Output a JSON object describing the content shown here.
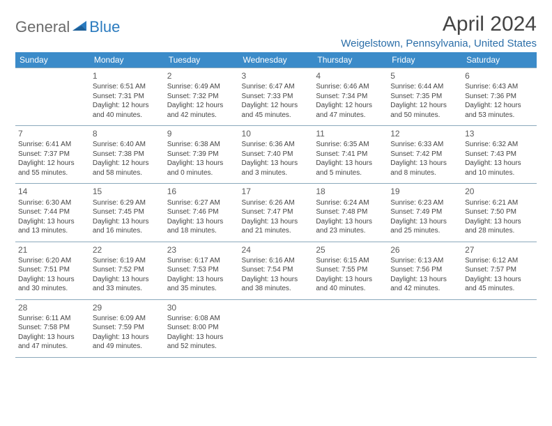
{
  "logo": {
    "general": "General",
    "blue": "Blue"
  },
  "title": "April 2024",
  "location": "Weigelstown, Pennsylvania, United States",
  "colors": {
    "header_bg": "#3b8bc9",
    "header_text": "#ffffff",
    "border": "#8aa8bb",
    "location_text": "#2b6ea8",
    "logo_general": "#6b6b6b",
    "logo_blue": "#2b7bbf"
  },
  "weekdays": [
    "Sunday",
    "Monday",
    "Tuesday",
    "Wednesday",
    "Thursday",
    "Friday",
    "Saturday"
  ],
  "grid": [
    [
      null,
      {
        "n": "1",
        "sr": "6:51 AM",
        "ss": "7:31 PM",
        "dl": "12 hours and 40 minutes."
      },
      {
        "n": "2",
        "sr": "6:49 AM",
        "ss": "7:32 PM",
        "dl": "12 hours and 42 minutes."
      },
      {
        "n": "3",
        "sr": "6:47 AM",
        "ss": "7:33 PM",
        "dl": "12 hours and 45 minutes."
      },
      {
        "n": "4",
        "sr": "6:46 AM",
        "ss": "7:34 PM",
        "dl": "12 hours and 47 minutes."
      },
      {
        "n": "5",
        "sr": "6:44 AM",
        "ss": "7:35 PM",
        "dl": "12 hours and 50 minutes."
      },
      {
        "n": "6",
        "sr": "6:43 AM",
        "ss": "7:36 PM",
        "dl": "12 hours and 53 minutes."
      }
    ],
    [
      {
        "n": "7",
        "sr": "6:41 AM",
        "ss": "7:37 PM",
        "dl": "12 hours and 55 minutes."
      },
      {
        "n": "8",
        "sr": "6:40 AM",
        "ss": "7:38 PM",
        "dl": "12 hours and 58 minutes."
      },
      {
        "n": "9",
        "sr": "6:38 AM",
        "ss": "7:39 PM",
        "dl": "13 hours and 0 minutes."
      },
      {
        "n": "10",
        "sr": "6:36 AM",
        "ss": "7:40 PM",
        "dl": "13 hours and 3 minutes."
      },
      {
        "n": "11",
        "sr": "6:35 AM",
        "ss": "7:41 PM",
        "dl": "13 hours and 5 minutes."
      },
      {
        "n": "12",
        "sr": "6:33 AM",
        "ss": "7:42 PM",
        "dl": "13 hours and 8 minutes."
      },
      {
        "n": "13",
        "sr": "6:32 AM",
        "ss": "7:43 PM",
        "dl": "13 hours and 10 minutes."
      }
    ],
    [
      {
        "n": "14",
        "sr": "6:30 AM",
        "ss": "7:44 PM",
        "dl": "13 hours and 13 minutes."
      },
      {
        "n": "15",
        "sr": "6:29 AM",
        "ss": "7:45 PM",
        "dl": "13 hours and 16 minutes."
      },
      {
        "n": "16",
        "sr": "6:27 AM",
        "ss": "7:46 PM",
        "dl": "13 hours and 18 minutes."
      },
      {
        "n": "17",
        "sr": "6:26 AM",
        "ss": "7:47 PM",
        "dl": "13 hours and 21 minutes."
      },
      {
        "n": "18",
        "sr": "6:24 AM",
        "ss": "7:48 PM",
        "dl": "13 hours and 23 minutes."
      },
      {
        "n": "19",
        "sr": "6:23 AM",
        "ss": "7:49 PM",
        "dl": "13 hours and 25 minutes."
      },
      {
        "n": "20",
        "sr": "6:21 AM",
        "ss": "7:50 PM",
        "dl": "13 hours and 28 minutes."
      }
    ],
    [
      {
        "n": "21",
        "sr": "6:20 AM",
        "ss": "7:51 PM",
        "dl": "13 hours and 30 minutes."
      },
      {
        "n": "22",
        "sr": "6:19 AM",
        "ss": "7:52 PM",
        "dl": "13 hours and 33 minutes."
      },
      {
        "n": "23",
        "sr": "6:17 AM",
        "ss": "7:53 PM",
        "dl": "13 hours and 35 minutes."
      },
      {
        "n": "24",
        "sr": "6:16 AM",
        "ss": "7:54 PM",
        "dl": "13 hours and 38 minutes."
      },
      {
        "n": "25",
        "sr": "6:15 AM",
        "ss": "7:55 PM",
        "dl": "13 hours and 40 minutes."
      },
      {
        "n": "26",
        "sr": "6:13 AM",
        "ss": "7:56 PM",
        "dl": "13 hours and 42 minutes."
      },
      {
        "n": "27",
        "sr": "6:12 AM",
        "ss": "7:57 PM",
        "dl": "13 hours and 45 minutes."
      }
    ],
    [
      {
        "n": "28",
        "sr": "6:11 AM",
        "ss": "7:58 PM",
        "dl": "13 hours and 47 minutes."
      },
      {
        "n": "29",
        "sr": "6:09 AM",
        "ss": "7:59 PM",
        "dl": "13 hours and 49 minutes."
      },
      {
        "n": "30",
        "sr": "6:08 AM",
        "ss": "8:00 PM",
        "dl": "13 hours and 52 minutes."
      },
      null,
      null,
      null,
      null
    ]
  ],
  "labels": {
    "sunrise": "Sunrise:",
    "sunset": "Sunset:",
    "daylight": "Daylight:"
  }
}
